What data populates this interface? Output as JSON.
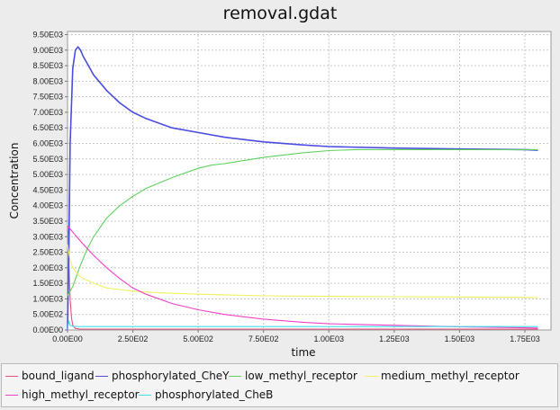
{
  "chart_data": {
    "type": "line",
    "title": "removal.gdat",
    "xlabel": "time",
    "ylabel": "Concentration",
    "xlim": [
      0,
      1850
    ],
    "ylim": [
      0,
      9600
    ],
    "x_ticks": [
      "0.00E00",
      "2.50E02",
      "5.00E02",
      "7.50E02",
      "1.00E03",
      "1.25E03",
      "1.50E03",
      "1.75E03"
    ],
    "y_ticks": [
      "0.00E00",
      "5.00E02",
      "1.00E03",
      "1.50E03",
      "2.00E03",
      "2.50E03",
      "3.00E03",
      "3.50E03",
      "4.00E03",
      "4.50E03",
      "5.00E03",
      "5.50E03",
      "6.00E03",
      "6.50E03",
      "7.00E03",
      "7.50E03",
      "8.00E03",
      "8.50E03",
      "9.00E03",
      "9.50E03"
    ],
    "grid": true,
    "legend_position": "bottom",
    "series": [
      {
        "name": "bound_ligand",
        "color": "#e8507a",
        "x": [
          0,
          3,
          6,
          10,
          15,
          20,
          30,
          50,
          100,
          200,
          500,
          1000,
          1500,
          1800
        ],
        "y": [
          3350,
          3000,
          2000,
          1000,
          400,
          150,
          50,
          30,
          30,
          30,
          30,
          30,
          30,
          30
        ]
      },
      {
        "name": "phosphorylated_CheY",
        "color": "#4a4de0",
        "x": [
          0,
          5,
          10,
          20,
          30,
          40,
          50,
          60,
          80,
          100,
          150,
          200,
          250,
          300,
          400,
          500,
          600,
          750,
          900,
          1000,
          1250,
          1500,
          1750,
          1800
        ],
        "y": [
          0,
          2500,
          6000,
          8400,
          9000,
          9100,
          9000,
          8800,
          8500,
          8200,
          7700,
          7300,
          7000,
          6800,
          6500,
          6350,
          6200,
          6050,
          5950,
          5900,
          5850,
          5820,
          5800,
          5780
        ]
      },
      {
        "name": "low_methyl_receptor",
        "color": "#5ed35e",
        "x": [
          0,
          20,
          50,
          75,
          100,
          150,
          200,
          250,
          300,
          400,
          500,
          550,
          600,
          750,
          900,
          1000,
          1100,
          1250,
          1500,
          1800
        ],
        "y": [
          1100,
          1400,
          2100,
          2600,
          3000,
          3600,
          4000,
          4300,
          4550,
          4900,
          5200,
          5300,
          5350,
          5550,
          5700,
          5770,
          5800,
          5800,
          5800,
          5800
        ]
      },
      {
        "name": "medium_methyl_receptor",
        "color": "#f0f060",
        "x": [
          0,
          10,
          20,
          50,
          100,
          150,
          200,
          250,
          300,
          400,
          500,
          750,
          1000,
          1250,
          1500,
          1750,
          1800
        ],
        "y": [
          2750,
          2250,
          2000,
          1700,
          1500,
          1350,
          1300,
          1250,
          1220,
          1180,
          1150,
          1100,
          1080,
          1070,
          1060,
          1050,
          1040
        ]
      },
      {
        "name": "high_methyl_receptor",
        "color": "#f040c8",
        "x": [
          0,
          10,
          25,
          50,
          100,
          150,
          200,
          250,
          300,
          400,
          500,
          600,
          750,
          900,
          1000,
          1250,
          1500,
          1750,
          1800
        ],
        "y": [
          3350,
          3250,
          3100,
          2850,
          2400,
          2000,
          1650,
          1350,
          1150,
          850,
          650,
          500,
          350,
          250,
          200,
          150,
          100,
          70,
          60
        ]
      },
      {
        "name": "phosphorylated_CheB",
        "color": "#40e0e8",
        "x": [
          0,
          5,
          10,
          20,
          40,
          100,
          200,
          500,
          1000,
          1500,
          1800
        ],
        "y": [
          0,
          300,
          150,
          120,
          110,
          110,
          110,
          110,
          110,
          110,
          110
        ]
      }
    ]
  }
}
